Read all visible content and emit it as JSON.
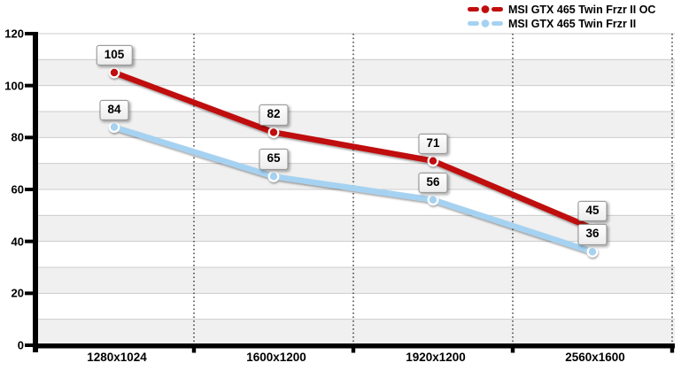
{
  "chart_data": {
    "type": "line",
    "title": "",
    "xlabel": "",
    "ylabel": "",
    "categories": [
      "1280x1024",
      "1600x1200",
      "1920x1200",
      "2560x1600"
    ],
    "series": [
      {
        "name": "MSI GTX 465 Twin Frzr II OC",
        "color": "#c00d0d",
        "values": [
          105,
          82,
          71,
          45
        ]
      },
      {
        "name": "MSI GTX 465 Twin Frzr II",
        "color": "#a6d2f2",
        "values": [
          84,
          65,
          56,
          36
        ]
      }
    ],
    "ylim": [
      0,
      120
    ],
    "y_ticks": [
      0,
      20,
      40,
      60,
      80,
      100,
      120
    ],
    "y_minor_step": 10,
    "grid": "horizontal gridlines every 10 with alternating gray stripes; dotted vertical separators between categories",
    "legend_position": "top-right",
    "data_labels": "boxed values above each point"
  },
  "colors": {
    "background": "#ffffff",
    "stripe": "#f0f0f0",
    "gridline": "#cccccc",
    "axis": "#000000",
    "separator": "#2a2a2a",
    "label_box_bg": "#ffffff",
    "label_box_border": "#8f8f8f",
    "text": "#000000",
    "marker_ring": "#ffffff"
  }
}
